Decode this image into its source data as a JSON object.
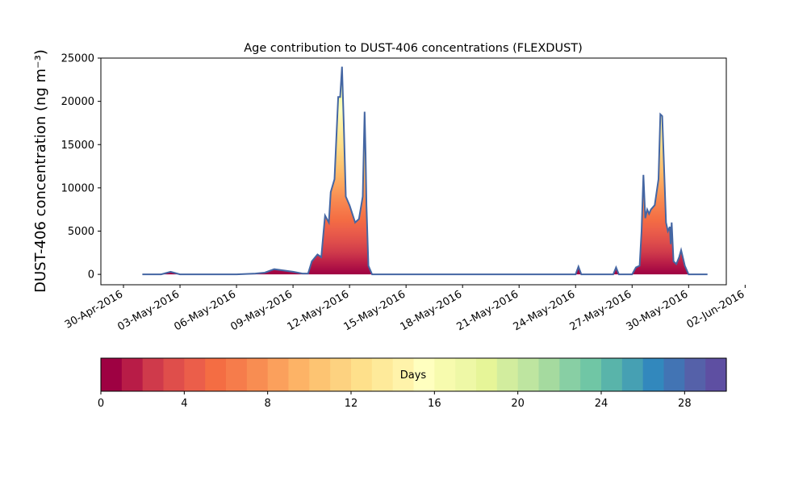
{
  "chart_data": {
    "type": "area",
    "title": "Age contribution to DUST-406 concentrations (FLEXDUST)",
    "xlabel": "",
    "ylabel": "DUST-406 concentration (ng m⁻³)",
    "ylim": [
      -1200,
      25000
    ],
    "yticks": [
      0,
      5000,
      10000,
      15000,
      20000,
      25000
    ],
    "xlim": [
      -1.2,
      32.0
    ],
    "xtick_labels": [
      "30-Apr-2016",
      "03-May-2016",
      "06-May-2016",
      "09-May-2016",
      "12-May-2016",
      "15-May-2016",
      "18-May-2016",
      "21-May-2016",
      "24-May-2016",
      "27-May-2016",
      "30-May-2016",
      "02-Jun-2016"
    ],
    "xticks_days": [
      0,
      3,
      6,
      9,
      12,
      15,
      18,
      21,
      24,
      27,
      30,
      33
    ],
    "x_unit": "days since 30-Apr-2016",
    "total_concentration": {
      "x": [
        1.0,
        2.0,
        2.5,
        3.0,
        3.5,
        6.0,
        7.0,
        7.5,
        8.0,
        9.0,
        9.5,
        9.8,
        10.0,
        10.3,
        10.5,
        10.7,
        10.9,
        11.0,
        11.2,
        11.4,
        11.5,
        11.6,
        11.7,
        11.8,
        12.0,
        12.3,
        12.5,
        12.7,
        12.8,
        12.85,
        12.9,
        13.0,
        13.2,
        13.5,
        14.0,
        15.0,
        16.0,
        17.0,
        20.0,
        21.0,
        23.0,
        24.0,
        24.15,
        24.3,
        25.5,
        26.0,
        26.15,
        26.3,
        27.0,
        27.2,
        27.4,
        27.5,
        27.6,
        27.7,
        27.8,
        27.9,
        28.0,
        28.2,
        28.4,
        28.5,
        28.6,
        28.7,
        28.8,
        28.9,
        29.0,
        29.05,
        29.1,
        29.2,
        29.35,
        29.5,
        29.6,
        29.8,
        30.0,
        30.2,
        30.4,
        30.6,
        30.8,
        31.0
      ],
      "y": [
        0,
        0,
        300,
        0,
        0,
        0,
        100,
        200,
        600,
        300,
        100,
        100,
        1500,
        2300,
        2000,
        6800,
        6000,
        9500,
        11000,
        20500,
        20500,
        24000,
        17000,
        9000,
        8000,
        6000,
        6400,
        9000,
        18800,
        14000,
        8000,
        1000,
        0,
        0,
        0,
        0,
        0,
        0,
        0,
        0,
        0,
        0,
        900,
        0,
        0,
        0,
        800,
        0,
        0,
        800,
        1000,
        5000,
        11500,
        6500,
        7500,
        7000,
        7500,
        8000,
        11000,
        18500,
        18300,
        12000,
        6000,
        5000,
        5500,
        3500,
        6000,
        1500,
        1200,
        2000,
        2800,
        1000,
        0,
        0,
        0,
        0,
        0,
        0
      ]
    },
    "age_colorbar": {
      "label": "Days",
      "ticks": [
        0,
        4,
        8,
        12,
        16,
        20,
        24,
        28
      ],
      "range": [
        0,
        30
      ],
      "colors": [
        "#9e0142",
        "#b81c47",
        "#cf3a4b",
        "#df4e4b",
        "#eb5e4a",
        "#f46d43",
        "#f67c4b",
        "#f88d52",
        "#fba05c",
        "#fdb366",
        "#fdc472",
        "#fdd280",
        "#fee08b",
        "#feea9a",
        "#fff3aa",
        "#ffffbf",
        "#f7fbae",
        "#eef8a6",
        "#e6f598",
        "#d2ed9e",
        "#bee5a0",
        "#a5da9f",
        "#88cfa4",
        "#70c6a5",
        "#59b4aa",
        "#46a0b3",
        "#3288bd",
        "#4274b4",
        "#5561a9",
        "#5e4fa2"
      ]
    },
    "colors": {
      "total_line": "#4466a3",
      "background": "#ffffff"
    }
  }
}
